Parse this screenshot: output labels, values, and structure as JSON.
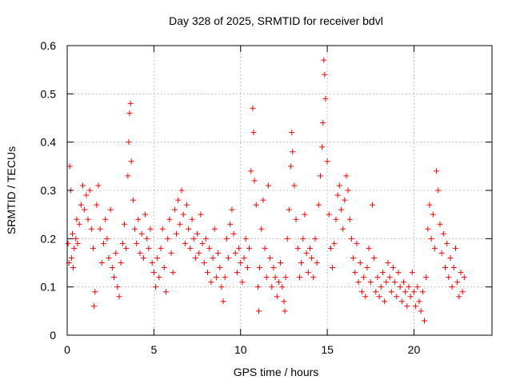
{
  "chart_data": {
    "type": "scatter",
    "title": "Day 328 of 2025, SRMTID for receiver bdvl",
    "xlabel": "GPS time / hours",
    "ylabel": "SRMTID / TECUs",
    "xlim": [
      0,
      24.5
    ],
    "ylim": [
      0,
      0.6
    ],
    "xticks": [
      0,
      5,
      10,
      15,
      20
    ],
    "yticks": [
      0,
      0.1,
      0.2,
      0.3,
      0.4,
      0.5,
      0.6
    ],
    "grid": true,
    "marker": "+",
    "color": "#ff0000",
    "series": [
      {
        "name": "SRMTID",
        "points": [
          [
            0.05,
            0.19
          ],
          [
            0.1,
            0.15
          ],
          [
            0.15,
            0.35
          ],
          [
            0.2,
            0.3
          ],
          [
            0.25,
            0.16
          ],
          [
            0.3,
            0.21
          ],
          [
            0.35,
            0.14
          ],
          [
            0.4,
            0.18
          ],
          [
            0.5,
            0.2
          ],
          [
            0.55,
            0.24
          ],
          [
            0.6,
            0.19
          ],
          [
            0.7,
            0.23
          ],
          [
            0.8,
            0.27
          ],
          [
            0.9,
            0.31
          ],
          [
            1.0,
            0.26
          ],
          [
            1.1,
            0.29
          ],
          [
            1.2,
            0.24
          ],
          [
            1.3,
            0.3
          ],
          [
            1.4,
            0.22
          ],
          [
            1.5,
            0.18
          ],
          [
            1.55,
            0.06
          ],
          [
            1.6,
            0.09
          ],
          [
            1.7,
            0.27
          ],
          [
            1.8,
            0.31
          ],
          [
            1.9,
            0.22
          ],
          [
            2.0,
            0.15
          ],
          [
            2.1,
            0.19
          ],
          [
            2.2,
            0.24
          ],
          [
            2.3,
            0.2
          ],
          [
            2.4,
            0.16
          ],
          [
            2.5,
            0.26
          ],
          [
            2.6,
            0.14
          ],
          [
            2.7,
            0.12
          ],
          [
            2.8,
            0.17
          ],
          [
            2.9,
            0.1
          ],
          [
            3.0,
            0.08
          ],
          [
            3.1,
            0.15
          ],
          [
            3.2,
            0.19
          ],
          [
            3.3,
            0.23
          ],
          [
            3.4,
            0.18
          ],
          [
            3.5,
            0.33
          ],
          [
            3.55,
            0.4
          ],
          [
            3.6,
            0.46
          ],
          [
            3.65,
            0.48
          ],
          [
            3.7,
            0.36
          ],
          [
            3.8,
            0.28
          ],
          [
            3.9,
            0.22
          ],
          [
            4.0,
            0.19
          ],
          [
            4.1,
            0.24
          ],
          [
            4.2,
            0.17
          ],
          [
            4.3,
            0.21
          ],
          [
            4.4,
            0.16
          ],
          [
            4.5,
            0.25
          ],
          [
            4.6,
            0.2
          ],
          [
            4.7,
            0.18
          ],
          [
            4.8,
            0.22
          ],
          [
            4.9,
            0.15
          ],
          [
            5.0,
            0.13
          ],
          [
            5.1,
            0.1
          ],
          [
            5.2,
            0.16
          ],
          [
            5.3,
            0.12
          ],
          [
            5.4,
            0.18
          ],
          [
            5.5,
            0.22
          ],
          [
            5.6,
            0.14
          ],
          [
            5.7,
            0.09
          ],
          [
            5.8,
            0.2
          ],
          [
            5.9,
            0.24
          ],
          [
            6.0,
            0.17
          ],
          [
            6.1,
            0.13
          ],
          [
            6.2,
            0.26
          ],
          [
            6.3,
            0.21
          ],
          [
            6.4,
            0.28
          ],
          [
            6.5,
            0.23
          ],
          [
            6.6,
            0.3
          ],
          [
            6.7,
            0.25
          ],
          [
            6.8,
            0.19
          ],
          [
            6.9,
            0.27
          ],
          [
            7.0,
            0.22
          ],
          [
            7.1,
            0.18
          ],
          [
            7.2,
            0.24
          ],
          [
            7.3,
            0.2
          ],
          [
            7.4,
            0.16
          ],
          [
            7.5,
            0.21
          ],
          [
            7.6,
            0.17
          ],
          [
            7.7,
            0.25
          ],
          [
            7.8,
            0.19
          ],
          [
            7.9,
            0.15
          ],
          [
            8.0,
            0.2
          ],
          [
            8.1,
            0.13
          ],
          [
            8.2,
            0.18
          ],
          [
            8.3,
            0.11
          ],
          [
            8.4,
            0.16
          ],
          [
            8.5,
            0.22
          ],
          [
            8.6,
            0.12
          ],
          [
            8.7,
            0.17
          ],
          [
            8.8,
            0.14
          ],
          [
            8.9,
            0.1
          ],
          [
            9.0,
            0.07
          ],
          [
            9.1,
            0.12
          ],
          [
            9.2,
            0.2
          ],
          [
            9.3,
            0.16
          ],
          [
            9.4,
            0.23
          ],
          [
            9.5,
            0.26
          ],
          [
            9.6,
            0.21
          ],
          [
            9.7,
            0.17
          ],
          [
            9.8,
            0.13
          ],
          [
            9.9,
            0.18
          ],
          [
            10.0,
            0.15
          ],
          [
            10.1,
            0.11
          ],
          [
            10.2,
            0.16
          ],
          [
            10.3,
            0.2
          ],
          [
            10.4,
            0.14
          ],
          [
            10.5,
            0.18
          ],
          [
            10.6,
            0.34
          ],
          [
            10.7,
            0.47
          ],
          [
            10.75,
            0.42
          ],
          [
            10.8,
            0.32
          ],
          [
            10.9,
            0.27
          ],
          [
            11.0,
            0.1
          ],
          [
            11.05,
            0.05
          ],
          [
            11.1,
            0.14
          ],
          [
            11.2,
            0.22
          ],
          [
            11.3,
            0.28
          ],
          [
            11.4,
            0.18
          ],
          [
            11.5,
            0.12
          ],
          [
            11.6,
            0.31
          ],
          [
            11.7,
            0.16
          ],
          [
            11.8,
            0.1
          ],
          [
            11.9,
            0.14
          ],
          [
            12.0,
            0.12
          ],
          [
            12.1,
            0.08
          ],
          [
            12.2,
            0.11
          ],
          [
            12.3,
            0.15
          ],
          [
            12.4,
            0.1
          ],
          [
            12.5,
            0.07
          ],
          [
            12.55,
            0.05
          ],
          [
            12.6,
            0.12
          ],
          [
            12.7,
            0.2
          ],
          [
            12.8,
            0.26
          ],
          [
            12.9,
            0.35
          ],
          [
            12.95,
            0.42
          ],
          [
            13.0,
            0.38
          ],
          [
            13.1,
            0.31
          ],
          [
            13.2,
            0.24
          ],
          [
            13.3,
            0.18
          ],
          [
            13.4,
            0.12
          ],
          [
            13.5,
            0.15
          ],
          [
            13.6,
            0.2
          ],
          [
            13.7,
            0.25
          ],
          [
            13.8,
            0.17
          ],
          [
            13.9,
            0.13
          ],
          [
            14.0,
            0.18
          ],
          [
            14.1,
            0.16
          ],
          [
            14.2,
            0.12
          ],
          [
            14.3,
            0.2
          ],
          [
            14.4,
            0.15
          ],
          [
            14.5,
            0.27
          ],
          [
            14.6,
            0.33
          ],
          [
            14.7,
            0.39
          ],
          [
            14.75,
            0.44
          ],
          [
            14.8,
            0.57
          ],
          [
            14.85,
            0.54
          ],
          [
            14.9,
            0.49
          ],
          [
            15.0,
            0.36
          ],
          [
            15.1,
            0.25
          ],
          [
            15.2,
            0.18
          ],
          [
            15.3,
            0.14
          ],
          [
            15.4,
            0.19
          ],
          [
            15.5,
            0.24
          ],
          [
            15.6,
            0.29
          ],
          [
            15.7,
            0.31
          ],
          [
            15.8,
            0.26
          ],
          [
            15.9,
            0.22
          ],
          [
            16.0,
            0.28
          ],
          [
            16.1,
            0.33
          ],
          [
            16.2,
            0.3
          ],
          [
            16.3,
            0.24
          ],
          [
            16.4,
            0.2
          ],
          [
            16.5,
            0.16
          ],
          [
            16.6,
            0.13
          ],
          [
            16.7,
            0.19
          ],
          [
            16.8,
            0.11
          ],
          [
            16.9,
            0.15
          ],
          [
            17.0,
            0.09
          ],
          [
            17.1,
            0.12
          ],
          [
            17.2,
            0.08
          ],
          [
            17.3,
            0.14
          ],
          [
            17.4,
            0.18
          ],
          [
            17.5,
            0.11
          ],
          [
            17.6,
            0.27
          ],
          [
            17.7,
            0.16
          ],
          [
            17.8,
            0.09
          ],
          [
            17.9,
            0.12
          ],
          [
            18.0,
            0.08
          ],
          [
            18.1,
            0.1
          ],
          [
            18.2,
            0.13
          ],
          [
            18.3,
            0.07
          ],
          [
            18.4,
            0.11
          ],
          [
            18.5,
            0.15
          ],
          [
            18.6,
            0.12
          ],
          [
            18.7,
            0.09
          ],
          [
            18.8,
            0.14
          ],
          [
            18.9,
            0.11
          ],
          [
            19.0,
            0.08
          ],
          [
            19.1,
            0.13
          ],
          [
            19.2,
            0.1
          ],
          [
            19.3,
            0.07
          ],
          [
            19.4,
            0.11
          ],
          [
            19.5,
            0.09
          ],
          [
            19.6,
            0.06
          ],
          [
            19.7,
            0.1
          ],
          [
            19.8,
            0.08
          ],
          [
            19.9,
            0.13
          ],
          [
            20.0,
            0.09
          ],
          [
            20.1,
            0.06
          ],
          [
            20.2,
            0.1
          ],
          [
            20.3,
            0.07
          ],
          [
            20.4,
            0.05
          ],
          [
            20.5,
            0.09
          ],
          [
            20.6,
            0.03
          ],
          [
            20.7,
            0.12
          ],
          [
            20.8,
            0.22
          ],
          [
            20.9,
            0.27
          ],
          [
            21.0,
            0.2
          ],
          [
            21.1,
            0.25
          ],
          [
            21.2,
            0.18
          ],
          [
            21.3,
            0.34
          ],
          [
            21.4,
            0.3
          ],
          [
            21.5,
            0.23
          ],
          [
            21.6,
            0.17
          ],
          [
            21.7,
            0.21
          ],
          [
            21.8,
            0.14
          ],
          [
            21.9,
            0.19
          ],
          [
            22.0,
            0.12
          ],
          [
            22.1,
            0.16
          ],
          [
            22.2,
            0.1
          ],
          [
            22.3,
            0.14
          ],
          [
            22.4,
            0.18
          ],
          [
            22.5,
            0.11
          ],
          [
            22.6,
            0.08
          ],
          [
            22.7,
            0.13
          ],
          [
            22.8,
            0.09
          ],
          [
            22.9,
            0.12
          ]
        ]
      }
    ]
  }
}
